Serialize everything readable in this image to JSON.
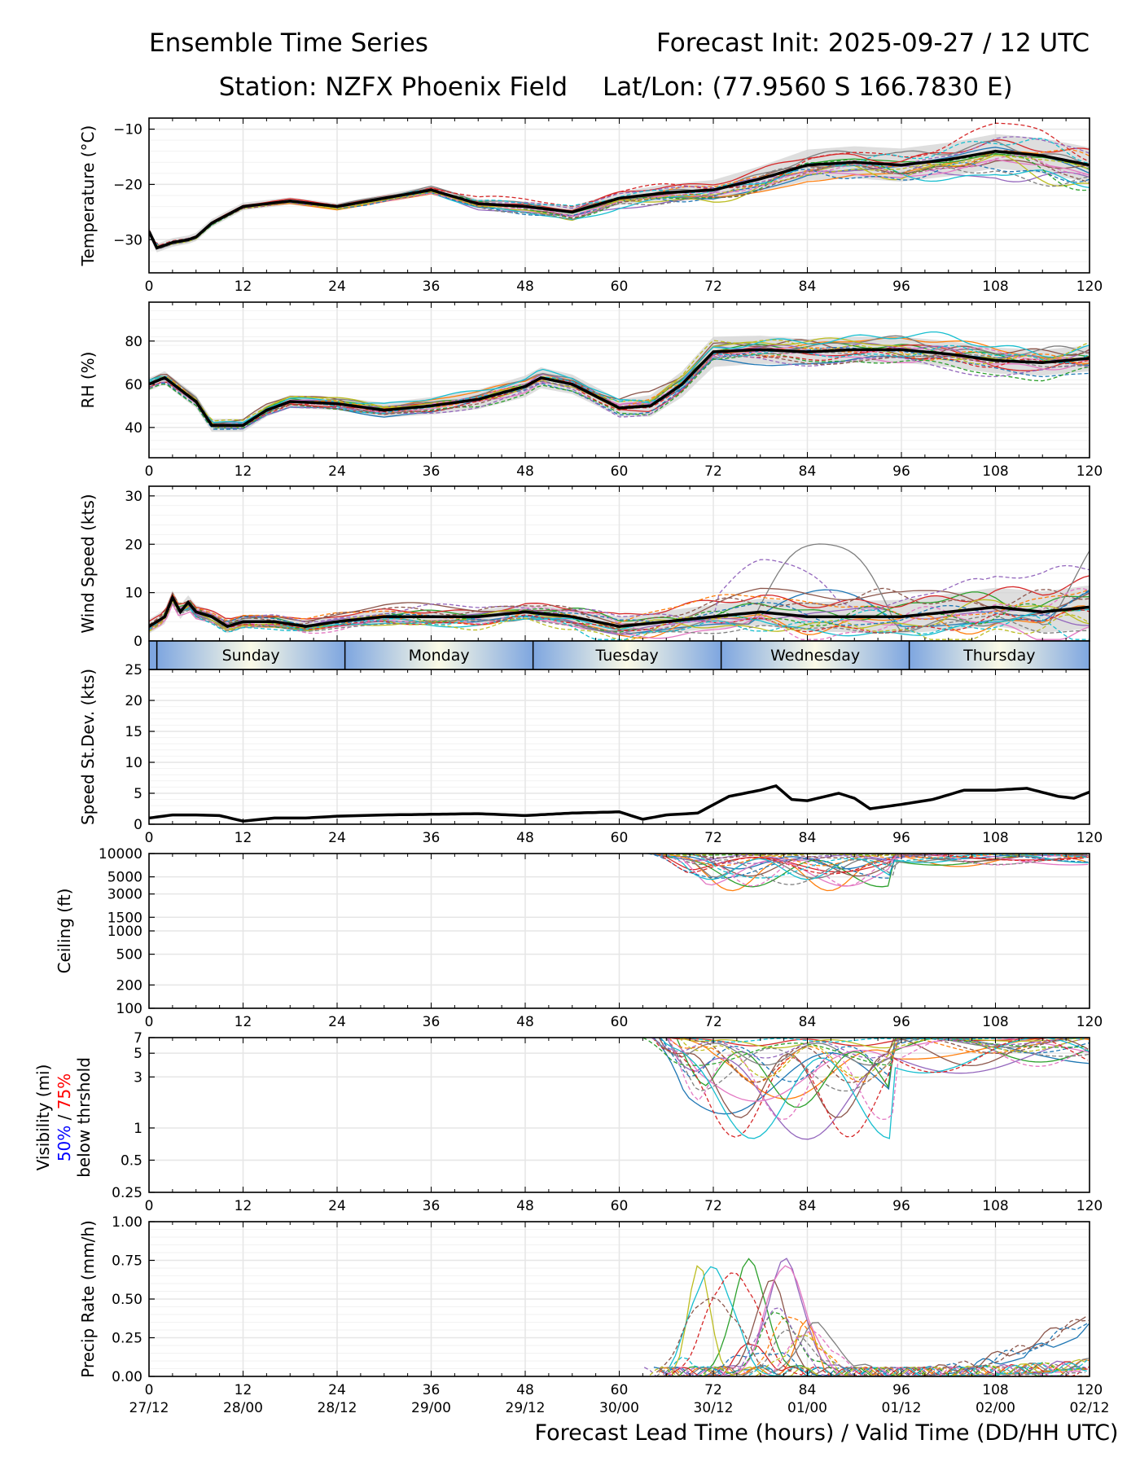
{
  "header": {
    "title_left": "Ensemble Time Series",
    "title_right": "Forecast Init: 2025-09-27 / 12 UTC",
    "station": "Station: NZFX Phoenix Field",
    "latlon": "Lat/Lon: (77.9560 S 166.7830 E)"
  },
  "colors": {
    "members": [
      "#1f77b4",
      "#ff7f0e",
      "#2ca02c",
      "#d62728",
      "#9467bd",
      "#8c564b",
      "#e377c2",
      "#7f7f7f",
      "#bcbd22",
      "#17becf"
    ],
    "mean": "#000000",
    "spread": "#d3d3d3",
    "grid": "#e6e6e6",
    "vis50": "#0000ff",
    "vis75": "#ff0000"
  },
  "chart_data": {
    "type": "line",
    "x_label": "Forecast Lead Time (hours) / Valid Time (DD/HH UTC)",
    "x_range": [
      0,
      120
    ],
    "x_ticks": [
      0,
      12,
      24,
      36,
      48,
      60,
      72,
      84,
      96,
      108,
      120
    ],
    "valid_times": [
      "27/12",
      "28/00",
      "28/12",
      "29/00",
      "29/12",
      "30/00",
      "30/12",
      "01/00",
      "01/12",
      "02/00",
      "02/12"
    ],
    "days": [
      "Sunday",
      "Monday",
      "Tuesday",
      "Wednesday",
      "Thursday"
    ],
    "day_boundaries": [
      1,
      25,
      49,
      73,
      97,
      121
    ],
    "member_count": 20,
    "panels": [
      {
        "id": "temperature",
        "ylabel": "Temperature (°C)",
        "ylim": [
          -36,
          -8
        ],
        "yticks": [
          -30,
          -20,
          -10
        ],
        "ytick_labels": [
          "−30",
          "−20",
          "−10"
        ],
        "scale": "linear",
        "mean": {
          "x": [
            0,
            1,
            3,
            5,
            6,
            8,
            12,
            18,
            24,
            30,
            36,
            42,
            48,
            54,
            60,
            66,
            72,
            78,
            84,
            90,
            96,
            102,
            108,
            114,
            120
          ],
          "y": [
            -28.5,
            -31.5,
            -30.5,
            -30.0,
            -29.5,
            -27.0,
            -24.0,
            -23.0,
            -24.0,
            -22.5,
            -21.0,
            -23.5,
            -24.0,
            -25.0,
            -22.5,
            -21.5,
            -21.0,
            -19.0,
            -16.5,
            -16.0,
            -16.5,
            -15.5,
            -14.0,
            -14.8,
            -16.5
          ]
        },
        "spread_half_width": {
          "x": [
            0,
            24,
            48,
            60,
            72,
            84,
            96,
            120
          ],
          "y": [
            0.8,
            0.6,
            0.9,
            1.2,
            1.8,
            2.8,
            3.0,
            3.2
          ]
        },
        "member_spread_base": 0.3,
        "member_spread_growth": 4.8
      },
      {
        "id": "rh",
        "ylabel": "RH (%)",
        "ylim": [
          26,
          98
        ],
        "yticks": [
          40,
          60,
          80
        ],
        "ytick_labels": [
          "40",
          "60",
          "80"
        ],
        "scale": "linear",
        "mean": {
          "x": [
            0,
            2,
            6,
            8,
            12,
            15,
            18,
            24,
            30,
            36,
            42,
            48,
            50,
            54,
            60,
            64,
            68,
            72,
            78,
            84,
            90,
            96,
            102,
            108,
            114,
            120
          ],
          "y": [
            60,
            63,
            52,
            41,
            41,
            48,
            52,
            51,
            48,
            50,
            53,
            59,
            63,
            60,
            49,
            50,
            60,
            75,
            76,
            75,
            76,
            76,
            74,
            71,
            70,
            72
          ]
        },
        "spread_half_width": {
          "x": [
            0,
            24,
            48,
            60,
            72,
            84,
            96,
            120
          ],
          "y": [
            3,
            3,
            5,
            4,
            7,
            6,
            6,
            6
          ]
        },
        "member_spread_base": 3,
        "member_spread_growth": 8
      },
      {
        "id": "wind",
        "ylabel": "Wind Speed (kts)",
        "ylim": [
          0,
          32
        ],
        "yticks": [
          0,
          10,
          20,
          30
        ],
        "ytick_labels": [
          "0",
          "10",
          "20",
          "30"
        ],
        "scale": "linear",
        "mean": {
          "x": [
            0,
            2,
            3,
            4,
            5,
            6,
            8,
            10,
            12,
            16,
            20,
            24,
            30,
            36,
            42,
            48,
            54,
            60,
            66,
            72,
            78,
            84,
            90,
            96,
            102,
            108,
            114,
            120
          ],
          "y": [
            3,
            5,
            9,
            6,
            8,
            6,
            5,
            3,
            4,
            4,
            3,
            4,
            5,
            5,
            5,
            6,
            5,
            3,
            4,
            5,
            6,
            5,
            5,
            5,
            6,
            7,
            6,
            7
          ]
        },
        "spread_half_width": {
          "x": [
            0,
            24,
            48,
            72,
            84,
            96,
            120
          ],
          "y": [
            1.5,
            1.2,
            1.5,
            2.5,
            3.0,
            3.5,
            4.5
          ]
        },
        "member_spread_base": 1.5,
        "member_spread_growth": 6
      },
      {
        "id": "speed_stdev",
        "ylabel": "Speed St.Dev. (kts)",
        "ylim": [
          0,
          25
        ],
        "yticks": [
          0,
          5,
          10,
          15,
          20,
          25
        ],
        "ytick_labels": [
          "0",
          "5",
          "10",
          "15",
          "20",
          "25"
        ],
        "scale": "linear",
        "no_tick_labels_bottom": false,
        "mean": {
          "x": [
            0,
            3,
            6,
            9,
            12,
            16,
            20,
            24,
            30,
            36,
            42,
            48,
            54,
            60,
            63,
            66,
            70,
            74,
            78,
            80,
            82,
            84,
            88,
            90,
            92,
            96,
            100,
            104,
            108,
            112,
            116,
            118,
            120
          ],
          "y": [
            1.0,
            1.5,
            1.5,
            1.4,
            0.5,
            1.0,
            1.0,
            1.3,
            1.5,
            1.6,
            1.7,
            1.4,
            1.8,
            2.0,
            0.8,
            1.5,
            1.8,
            4.5,
            5.5,
            6.2,
            4.0,
            3.8,
            5.0,
            4.2,
            2.5,
            3.2,
            4.0,
            5.5,
            5.5,
            5.8,
            4.5,
            4.2,
            5.2
          ]
        },
        "spread_half_width": null,
        "members_shown": false
      },
      {
        "id": "ceiling",
        "ylabel": "Ceiling (ft)",
        "ylim": [
          100,
          10000
        ],
        "yticks": [
          100,
          200,
          500,
          1000,
          1500,
          3000,
          5000,
          10000
        ],
        "ytick_labels": [
          "100",
          "200",
          "500",
          "1000",
          "1500",
          "3000",
          "5000",
          "10000"
        ],
        "scale": "log",
        "active_from": 63,
        "floor": 3000,
        "members_shown": true
      },
      {
        "id": "visibility",
        "ylabel": "Visibility (mi)",
        "ylabel_50": "50%",
        "ylabel_sep": " / ",
        "ylabel_75": "75%",
        "ylabel_sub": "below thrshold",
        "ylim": [
          0.25,
          7
        ],
        "yticks": [
          0.25,
          0.5,
          1,
          3,
          5,
          7
        ],
        "ytick_labels": [
          "0.25",
          "0.5",
          "1",
          "3",
          "5",
          "7"
        ],
        "scale": "log",
        "active_from": 63,
        "floor": 0.7,
        "members_shown": true
      },
      {
        "id": "precip",
        "ylabel": "Precip Rate (mm/h)",
        "ylim": [
          0,
          1.0
        ],
        "yticks": [
          0,
          0.25,
          0.5,
          0.75,
          1.0
        ],
        "ytick_labels": [
          "0.00",
          "0.25",
          "0.50",
          "0.75",
          "1.00"
        ],
        "scale": "linear",
        "active_from": 63,
        "peak_max": 0.72,
        "members_shown": true
      }
    ]
  }
}
